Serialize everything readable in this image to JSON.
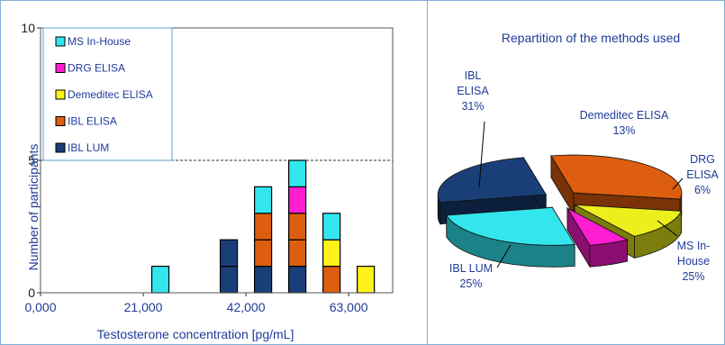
{
  "chart_data": [
    {
      "type": "bar",
      "stacked": true,
      "xlabel": "Testosterone concentration [pg/mL]",
      "ylabel": "Number of participants",
      "x_ticks": [
        "0,000",
        "21,000",
        "42,000",
        "63,000"
      ],
      "x_tick_values": [
        0,
        21000,
        42000,
        63000
      ],
      "xlim": [
        0,
        72000
      ],
      "y_ticks": [
        "0",
        "5",
        "10"
      ],
      "ylim": [
        0,
        10
      ],
      "reference_line": 5,
      "bin_width": 3500,
      "bins": [
        {
          "x": 24500,
          "counts": {
            "MS In-House": 1
          }
        },
        {
          "x": 38500,
          "counts": {
            "IBL LUM": 2
          }
        },
        {
          "x": 45500,
          "counts": {
            "IBL LUM": 1,
            "IBL ELISA": 2,
            "MS In-House": 1
          }
        },
        {
          "x": 52500,
          "counts": {
            "IBL LUM": 1,
            "IBL ELISA": 2,
            "DRG ELISA": 1,
            "MS In-House": 1
          }
        },
        {
          "x": 59500,
          "counts": {
            "IBL ELISA": 1,
            "Demeditec ELISA": 1,
            "MS In-House": 1
          }
        },
        {
          "x": 66500,
          "counts": {
            "Demeditec ELISA": 1
          }
        }
      ],
      "stack_order": [
        "IBL LUM",
        "IBL ELISA",
        "Demeditec ELISA",
        "DRG ELISA",
        "MS In-House"
      ],
      "legend": [
        {
          "name": "MS In-House",
          "color": "#33e6ee"
        },
        {
          "name": "DRG ELISA",
          "color": "#ff1ed2"
        },
        {
          "name": "Demeditec ELISA",
          "color": "#fff21a"
        },
        {
          "name": "IBL ELISA",
          "color": "#dd5e0e"
        },
        {
          "name": "IBL LUM",
          "color": "#1a3f78"
        }
      ]
    },
    {
      "type": "pie",
      "title": "Repartition of the methods used",
      "slices": [
        {
          "name": "IBL ELISA",
          "label_lines": [
            "IBL",
            "ELISA",
            "31%"
          ],
          "value": 31,
          "color": "#dd5e0e",
          "dark": "#7a3206"
        },
        {
          "name": "Demeditec ELISA",
          "label_lines": [
            "Demeditec ELISA",
            "13%"
          ],
          "value": 13,
          "color": "#ecef1c",
          "dark": "#7b7d0c"
        },
        {
          "name": "DRG ELISA",
          "label_lines": [
            "DRG",
            "ELISA",
            "6%"
          ],
          "value": 6,
          "color": "#ff1ed2",
          "dark": "#8a0f71"
        },
        {
          "name": "MS In-House",
          "label_lines": [
            "MS In-",
            "House",
            "25%"
          ],
          "value": 25,
          "color": "#33e6ee",
          "dark": "#1b8288"
        },
        {
          "name": "IBL LUM",
          "label_lines": [
            "IBL LUM",
            "25%"
          ],
          "value": 25,
          "color": "#1a3f78",
          "dark": "#0c1f3c"
        }
      ]
    }
  ]
}
